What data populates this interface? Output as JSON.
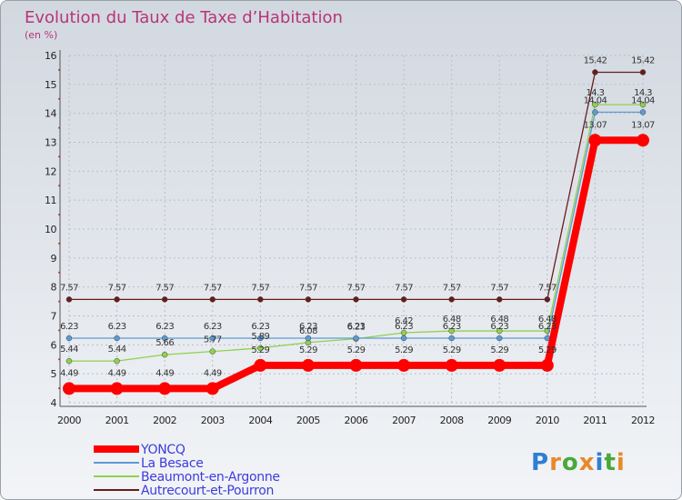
{
  "chart_data": {
    "type": "line",
    "title": "Evolution du Taux de Taxe d’Habitation",
    "subtitle": "(en %)",
    "xlabel": "",
    "ylabel": "",
    "ylim": [
      4,
      16
    ],
    "yticks": [
      4,
      5,
      6,
      7,
      8,
      9,
      10,
      11,
      12,
      13,
      14,
      15,
      16
    ],
    "categories": [
      "2000",
      "2001",
      "2002",
      "2003",
      "2004",
      "2005",
      "2006",
      "2007",
      "2008",
      "2009",
      "2010",
      "2011",
      "2012"
    ],
    "legend_position": "bottom-left",
    "series": [
      {
        "name": "Autrecourt-et-Pourron",
        "color": "#6a1b1b",
        "values": [
          7.57,
          7.57,
          7.57,
          7.57,
          7.57,
          7.57,
          7.57,
          7.57,
          7.57,
          7.57,
          7.57,
          15.42,
          15.42
        ],
        "labels": [
          "7.57",
          "7.57",
          "7.57",
          "7.57",
          "7.57",
          "7.57",
          "7.57",
          "7.57",
          "7.57",
          "7.57",
          "7.57",
          "15.42",
          "15.42"
        ]
      },
      {
        "name": "Beaumont-en-Argonne",
        "color": "#8fd14f",
        "values": [
          5.44,
          5.44,
          5.66,
          5.77,
          5.89,
          6.08,
          6.21,
          6.42,
          6.48,
          6.48,
          6.48,
          14.3,
          14.3
        ],
        "labels": [
          "5.44",
          "5.44",
          "5.66",
          "5.77",
          "5.89",
          "6.08",
          "6.21",
          "6.42",
          "6.48",
          "6.48",
          "6.48",
          "14.3",
          "14.3"
        ]
      },
      {
        "name": "La Besace",
        "color": "#5b9bd5",
        "values": [
          6.23,
          6.23,
          6.23,
          6.23,
          6.23,
          6.23,
          6.23,
          6.23,
          6.23,
          6.23,
          6.23,
          14.04,
          14.04
        ],
        "labels": [
          "6.23",
          "6.23",
          "6.23",
          "6.23",
          "6.23",
          "6.23",
          "6.23",
          "6.23",
          "6.23",
          "6.23",
          "6.23",
          "14.04",
          "14.04"
        ]
      },
      {
        "name": "YONCQ",
        "color": "#ff0000",
        "values": [
          4.49,
          4.49,
          4.49,
          4.49,
          5.29,
          5.29,
          5.29,
          5.29,
          5.29,
          5.29,
          5.29,
          13.07,
          13.07
        ],
        "labels": [
          "4.49",
          "4.49",
          "4.49",
          "4.49",
          "5.29",
          "5.29",
          "5.29",
          "5.29",
          "5.29",
          "5.29",
          "5.29",
          "13.07",
          "13.07"
        ]
      }
    ],
    "legend": [
      "YONCQ",
      "La Besace",
      "Beaumont-en-Argonne",
      "Autrecourt-et-Pourron"
    ]
  },
  "branding": {
    "logo_text": "Proxiti",
    "logo_letters": [
      "P",
      "r",
      "o",
      "x",
      "i",
      "t",
      "i"
    ],
    "logo_colors": [
      "#2e7fd1",
      "#e8892a",
      "#4aa83a",
      "#e8892a",
      "#2e7fd1",
      "#4aa83a",
      "#e8892a"
    ]
  }
}
